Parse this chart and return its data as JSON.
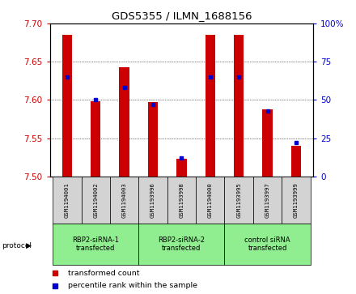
{
  "title": "GDS5355 / ILMN_1688156",
  "samples": [
    "GSM1194001",
    "GSM1194002",
    "GSM1194003",
    "GSM1193996",
    "GSM1193998",
    "GSM1194000",
    "GSM1193995",
    "GSM1193997",
    "GSM1193999"
  ],
  "red_values": [
    7.685,
    7.598,
    7.643,
    7.597,
    7.523,
    7.685,
    7.685,
    7.588,
    7.54
  ],
  "blue_values": [
    65,
    50,
    58,
    47,
    12,
    65,
    65,
    43,
    22
  ],
  "ylim": [
    7.5,
    7.7
  ],
  "y2lim": [
    0,
    100
  ],
  "yticks": [
    7.5,
    7.55,
    7.6,
    7.65,
    7.7
  ],
  "y2ticks": [
    0,
    25,
    50,
    75,
    100
  ],
  "red_color": "#cc0000",
  "blue_color": "#0000cc",
  "bar_width": 0.35,
  "legend_red": "transformed count",
  "legend_blue": "percentile rank within the sample",
  "tick_color_left": "#cc0000",
  "tick_color_right": "#0000cc",
  "bg_color": "#ffffff",
  "sample_bg_color": "#d3d3d3",
  "group_bg_color": "#90EE90",
  "group_ranges": [
    [
      0,
      3
    ],
    [
      3,
      6
    ],
    [
      6,
      9
    ]
  ],
  "group_labels": [
    "RBP2-siRNA-1\ntransfected",
    "RBP2-siRNA-2\ntransfected",
    "control siRNA\ntransfected"
  ]
}
